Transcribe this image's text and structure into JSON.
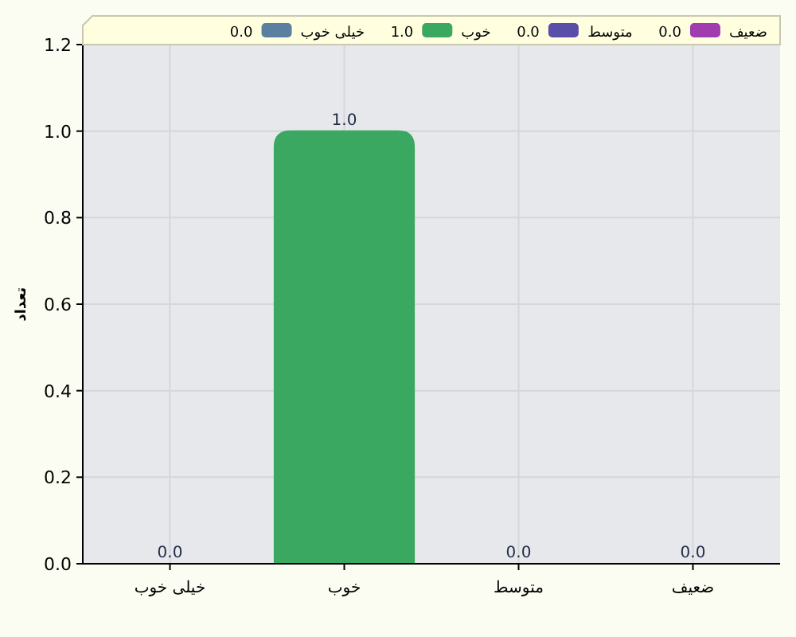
{
  "chart_data": {
    "type": "bar",
    "ylabel": "تعداد",
    "categories": [
      "خیلی خوب",
      "خوب",
      "متوسط",
      "ضعیف"
    ],
    "series": [
      {
        "name": "خیلی خوب",
        "color": "#5b7fa0",
        "values": [
          0,
          null,
          null,
          null
        ],
        "value_labels": [
          "0.0",
          null,
          null,
          null
        ]
      },
      {
        "name": "خوب",
        "color": "#3aa860",
        "values": [
          null,
          1,
          null,
          null
        ],
        "value_labels": [
          null,
          "1.0",
          null,
          null
        ]
      },
      {
        "name": "متوسط",
        "color": "#5a4fa8",
        "values": [
          null,
          null,
          0,
          null
        ],
        "value_labels": [
          null,
          null,
          "0.0",
          null
        ]
      },
      {
        "name": "ضعیف",
        "color": "#a03cb0",
        "values": [
          null,
          null,
          null,
          0
        ],
        "value_labels": [
          null,
          null,
          null,
          "0.0"
        ]
      }
    ],
    "ylim": [
      0,
      1.2
    ],
    "yticks": [
      {
        "value": 0,
        "label": "0.0"
      },
      {
        "value": 0.2,
        "label": "0.2"
      },
      {
        "value": 0.4,
        "label": "0.4"
      },
      {
        "value": 0.6,
        "label": "0.6"
      },
      {
        "value": 0.8,
        "label": "0.8"
      },
      {
        "value": 1.0,
        "label": "1.0"
      },
      {
        "value": 1.2,
        "label": "1.2"
      }
    ],
    "grid": true,
    "legend": "top"
  }
}
